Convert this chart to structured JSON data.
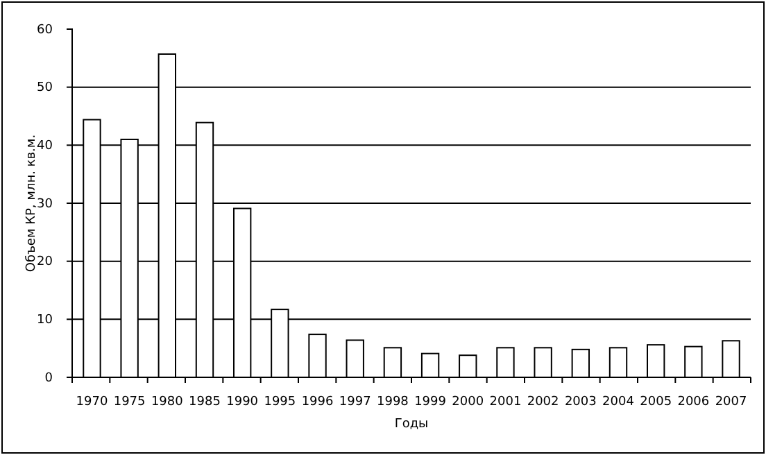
{
  "chart_data": {
    "type": "bar",
    "xlabel": "Годы",
    "ylabel": "Объем КР, млн. кв.м.",
    "categories": [
      "1970",
      "1975",
      "1980",
      "1985",
      "1990",
      "1995",
      "1996",
      "1997",
      "1998",
      "1999",
      "2000",
      "2001",
      "2002",
      "2003",
      "2004",
      "2005",
      "2006",
      "2007"
    ],
    "values": [
      44.4,
      41.0,
      55.7,
      43.9,
      29.1,
      11.7,
      7.4,
      6.4,
      5.1,
      4.1,
      3.8,
      5.1,
      5.1,
      4.8,
      5.1,
      5.6,
      5.3,
      6.3
    ],
    "color": "#ffffff",
    "ylim": [
      0,
      60
    ],
    "yticks": [
      0,
      10,
      20,
      30,
      40,
      50,
      60
    ],
    "grid": "y"
  }
}
